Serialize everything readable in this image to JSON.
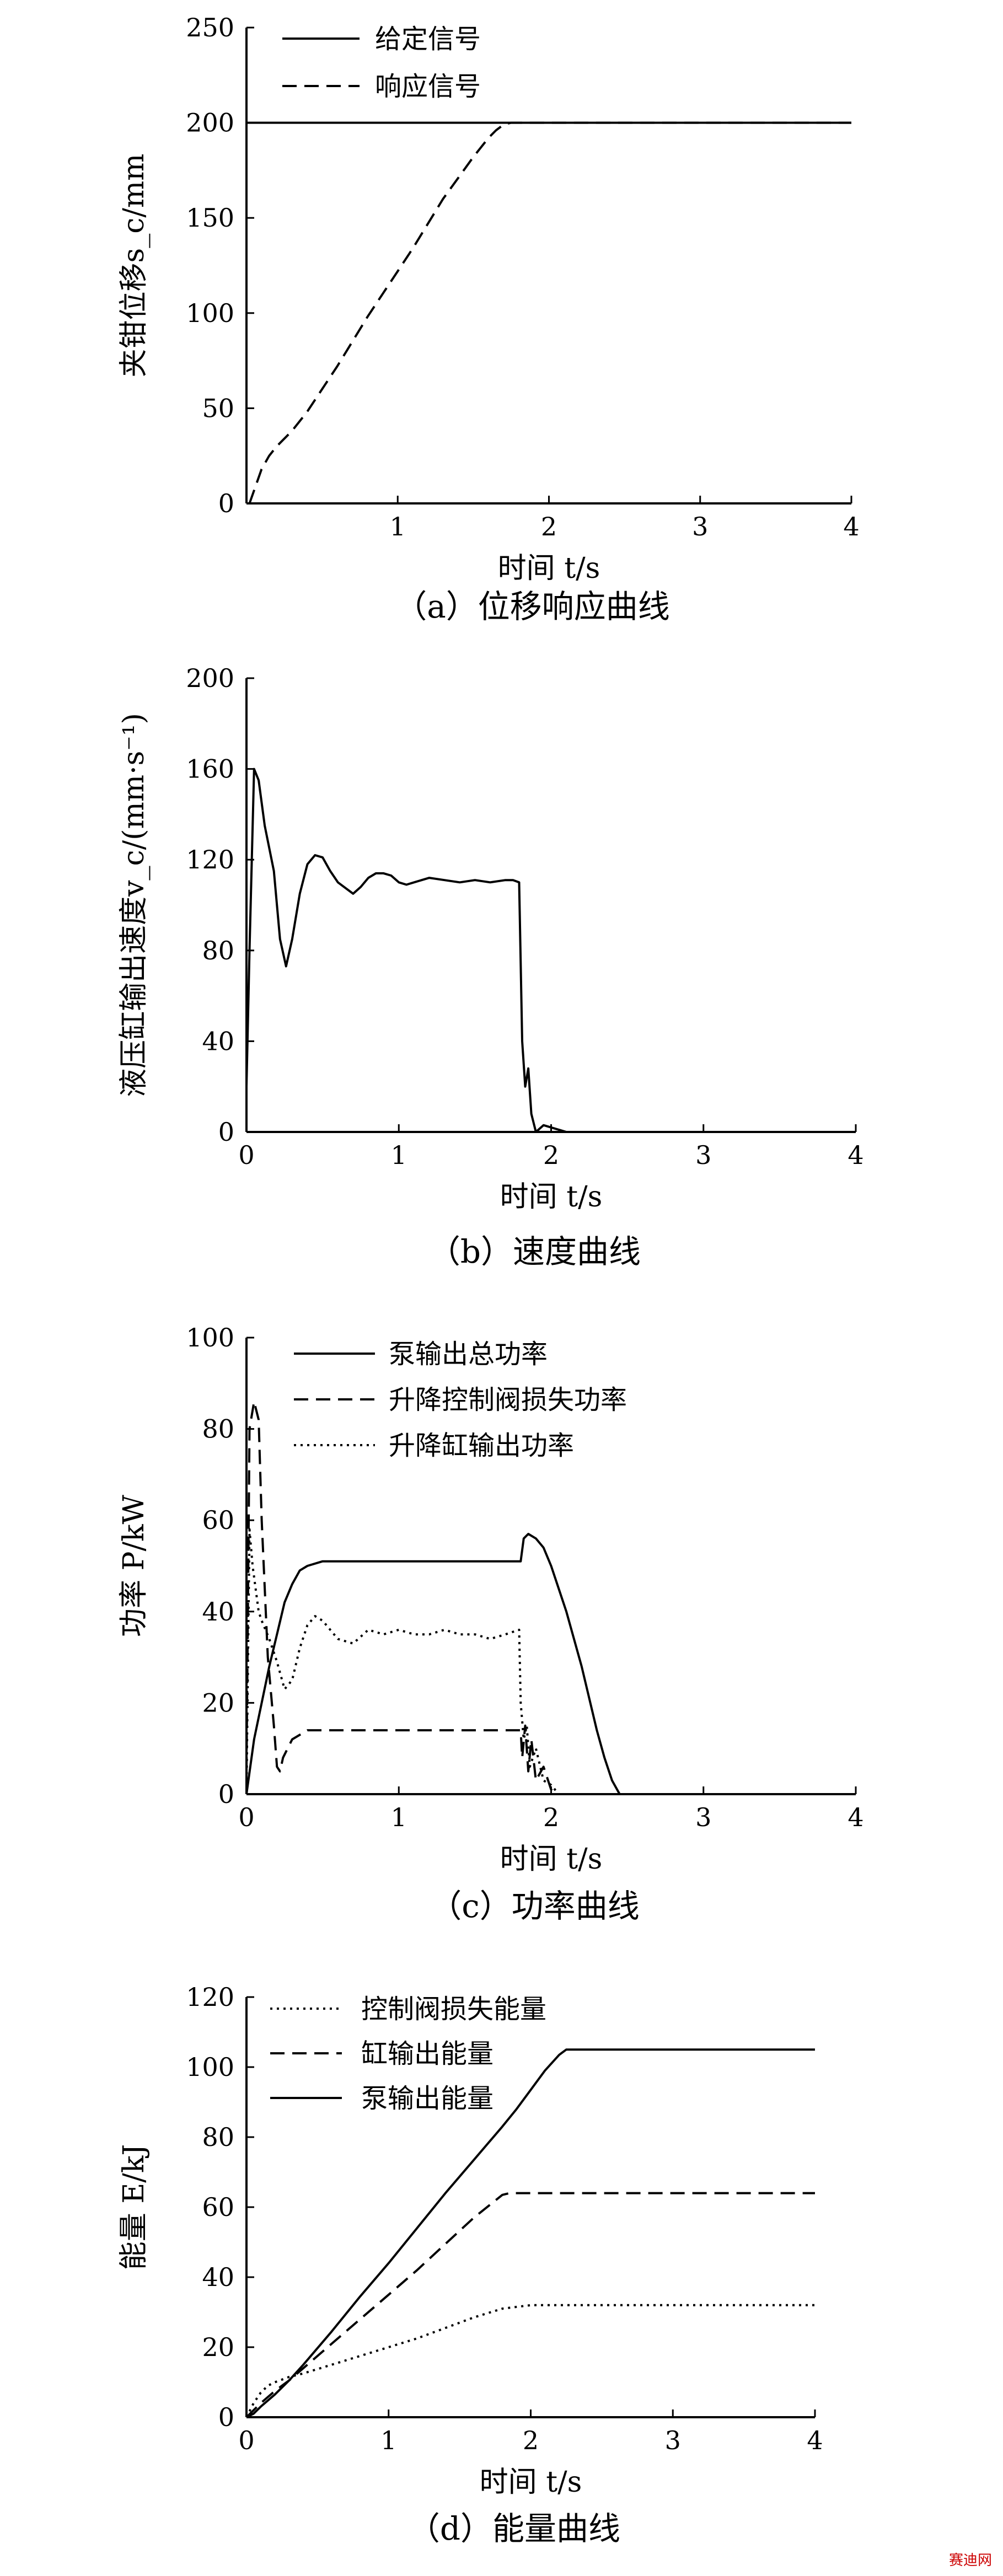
{
  "chart_data": [
    {
      "type": "line",
      "ylabel": "夹钳位移s_c/mm",
      "xlabel": "时间 t/s",
      "caption": "（a）位移响应曲线",
      "xlim": [
        0,
        4
      ],
      "ylim": [
        0,
        250
      ],
      "xticks": [
        0,
        1,
        2,
        3,
        4
      ],
      "yticks": [
        0,
        50,
        100,
        150,
        200,
        250
      ],
      "legend_position": "top-left",
      "grid": false,
      "series": [
        {
          "name": "给定信号",
          "style": "solid",
          "x": [
            0,
            4
          ],
          "y": [
            200,
            200
          ]
        },
        {
          "name": "响应信号",
          "style": "dashed",
          "x": [
            0.02,
            0.1,
            0.15,
            0.2,
            0.3,
            0.4,
            0.5,
            0.6,
            0.7,
            0.8,
            0.9,
            1.0,
            1.1,
            1.2,
            1.3,
            1.4,
            1.5,
            1.6,
            1.65,
            1.7,
            1.75,
            4.0
          ],
          "y": [
            0,
            18,
            25,
            30,
            38,
            48,
            60,
            72,
            85,
            98,
            110,
            122,
            134,
            147,
            160,
            171,
            182,
            192,
            196,
            199,
            200,
            200
          ]
        }
      ]
    },
    {
      "type": "line",
      "ylabel": "液压缸输出速度v_c/(mm·s⁻¹)",
      "xlabel": "时间 t/s",
      "caption": "（b）速度曲线",
      "xlim": [
        0,
        4
      ],
      "ylim": [
        0,
        200
      ],
      "xticks": [
        0,
        1,
        2,
        3,
        4
      ],
      "yticks": [
        0,
        40,
        80,
        120,
        160,
        200
      ],
      "grid": false,
      "series": [
        {
          "style": "solid",
          "x": [
            0.0,
            0.02,
            0.05,
            0.08,
            0.12,
            0.18,
            0.22,
            0.26,
            0.3,
            0.35,
            0.4,
            0.45,
            0.5,
            0.55,
            0.6,
            0.7,
            0.75,
            0.8,
            0.85,
            0.9,
            0.95,
            1.0,
            1.05,
            1.1,
            1.2,
            1.3,
            1.4,
            1.5,
            1.6,
            1.7,
            1.75,
            1.79,
            1.81,
            1.83,
            1.85,
            1.87,
            1.9,
            1.95,
            2.0,
            2.05,
            2.1,
            4.0
          ],
          "y": [
            20,
            80,
            160,
            155,
            135,
            115,
            85,
            73,
            85,
            105,
            118,
            122,
            121,
            115,
            110,
            105,
            108,
            112,
            114,
            114,
            113,
            110,
            109,
            110,
            112,
            111,
            110,
            111,
            110,
            111,
            111,
            110,
            40,
            20,
            28,
            8,
            0,
            3,
            2,
            1,
            0,
            0
          ]
        }
      ]
    },
    {
      "type": "line",
      "ylabel": "功率 P/kW",
      "xlabel": "时间 t/s",
      "caption": "（c）功率曲线",
      "xlim": [
        0,
        4
      ],
      "ylim": [
        0,
        100
      ],
      "xticks": [
        0,
        1,
        2,
        3,
        4
      ],
      "yticks": [
        0,
        20,
        40,
        60,
        80,
        100
      ],
      "legend_position": "top",
      "grid": false,
      "series": [
        {
          "name": "泵输出总功率",
          "style": "solid",
          "x": [
            0.0,
            0.05,
            0.1,
            0.15,
            0.2,
            0.25,
            0.3,
            0.35,
            0.4,
            0.5,
            0.6,
            0.8,
            1.0,
            1.2,
            1.5,
            1.7,
            1.8,
            1.82,
            1.85,
            1.9,
            1.95,
            2.0,
            2.1,
            2.2,
            2.3,
            2.35,
            2.4,
            2.45,
            4.0
          ],
          "y": [
            0,
            12,
            20,
            28,
            35,
            42,
            46,
            49,
            50,
            51,
            51,
            51,
            51,
            51,
            51,
            51,
            51,
            56,
            57,
            56,
            54,
            50,
            40,
            28,
            14,
            8,
            3,
            0,
            0
          ]
        },
        {
          "name": "升降控制阀损失功率",
          "style": "dashed",
          "x": [
            0.0,
            0.02,
            0.05,
            0.08,
            0.1,
            0.14,
            0.18,
            0.2,
            0.22,
            0.24,
            0.27,
            0.3,
            0.35,
            0.4,
            0.5,
            0.6,
            0.8,
            1.0,
            1.2,
            1.5,
            1.8,
            1.81,
            1.83,
            1.85,
            1.87,
            1.9,
            1.95,
            2.0,
            2.05,
            4.0
          ],
          "y": [
            5,
            80,
            86,
            82,
            60,
            30,
            15,
            6,
            5,
            8,
            10,
            12,
            13,
            14,
            14,
            14,
            14,
            14,
            14,
            14,
            14,
            8,
            15,
            5,
            12,
            3,
            6,
            1,
            0,
            0
          ]
        },
        {
          "name": "升降缸输出功率",
          "style": "dotted",
          "x": [
            0.0,
            0.02,
            0.04,
            0.06,
            0.08,
            0.1,
            0.15,
            0.2,
            0.25,
            0.3,
            0.35,
            0.4,
            0.45,
            0.5,
            0.55,
            0.6,
            0.7,
            0.8,
            0.9,
            1.0,
            1.1,
            1.2,
            1.3,
            1.4,
            1.5,
            1.6,
            1.7,
            1.79,
            1.8,
            1.82,
            1.84,
            1.86,
            1.9,
            1.95,
            2.0,
            2.05,
            4.0
          ],
          "y": [
            0,
            58,
            50,
            45,
            40,
            38,
            34,
            29,
            23,
            25,
            32,
            37,
            39,
            38,
            36,
            34,
            33,
            36,
            35,
            36,
            35,
            35,
            36,
            35,
            35,
            34,
            35,
            36,
            20,
            12,
            15,
            6,
            10,
            3,
            2,
            0,
            0
          ]
        }
      ]
    },
    {
      "type": "line",
      "ylabel": "能量 E/kJ",
      "xlabel": "时间 t/s",
      "caption": "（d）能量曲线",
      "xlim": [
        0,
        4
      ],
      "ylim": [
        0,
        120
      ],
      "xticks": [
        0,
        1,
        2,
        3,
        4
      ],
      "yticks": [
        0,
        20,
        40,
        60,
        80,
        100,
        120
      ],
      "legend_position": "top",
      "grid": false,
      "series": [
        {
          "name": "控制阀损失能量",
          "style": "dotted",
          "x": [
            0.0,
            0.05,
            0.1,
            0.15,
            0.2,
            0.3,
            0.4,
            0.6,
            0.8,
            1.0,
            1.2,
            1.4,
            1.6,
            1.8,
            2.0,
            4.0
          ],
          "y": [
            0,
            4,
            7,
            9,
            10,
            11.5,
            12.5,
            15,
            17.5,
            20,
            22.5,
            25.5,
            28.5,
            31,
            32,
            32
          ]
        },
        {
          "name": "缸输出能量",
          "style": "dashed",
          "x": [
            0.0,
            0.05,
            0.1,
            0.2,
            0.3,
            0.4,
            0.6,
            0.8,
            1.0,
            1.2,
            1.4,
            1.6,
            1.8,
            1.85,
            4.0
          ],
          "y": [
            0,
            2,
            4,
            7.5,
            10.5,
            14,
            21,
            28,
            35,
            42,
            49.5,
            57,
            63.5,
            64,
            64
          ]
        },
        {
          "name": "泵输出能量",
          "style": "solid",
          "x": [
            0.0,
            0.05,
            0.1,
            0.2,
            0.3,
            0.4,
            0.6,
            0.8,
            1.0,
            1.2,
            1.4,
            1.6,
            1.8,
            1.9,
            2.0,
            2.1,
            2.2,
            2.25,
            2.3,
            4.0
          ],
          "y": [
            0,
            1,
            3,
            6.5,
            10.5,
            15,
            24.5,
            34.5,
            44,
            54,
            64,
            73.5,
            83,
            88,
            93.5,
            99,
            103.5,
            105,
            105,
            105
          ]
        }
      ]
    }
  ],
  "watermark": "赛迪网"
}
